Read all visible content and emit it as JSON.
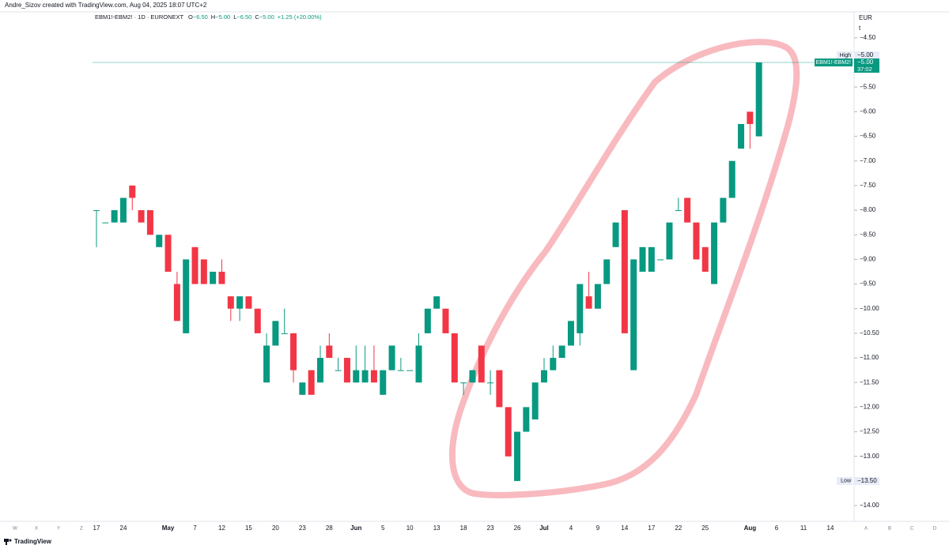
{
  "header": "Andre_Sizov created with TradingView.com, Aug 04, 2025 18:07 UTC+2",
  "brand": "TradingView",
  "chart_data": {
    "type": "candlestick",
    "legend": {
      "title": "EBM1!-EBM2! · 1D · EURONEXT",
      "items": [
        {
          "key": "O",
          "value": "−6.50"
        },
        {
          "key": "H",
          "value": "−5.00"
        },
        {
          "key": "L",
          "value": "−6.50"
        },
        {
          "key": "C",
          "value": "−5.00"
        }
      ],
      "change": "+1.25 (+20.00%)"
    },
    "currency": "EUR",
    "unit_marker": "t",
    "up_color": "#089981",
    "down_color": "#f23645",
    "grid": false,
    "ylim": [
      -14.32,
      -4.02
    ],
    "yticks": [
      {
        "value": -4.5,
        "label": "−4.50"
      },
      {
        "value": -5.5,
        "label": "−5.50"
      },
      {
        "value": -6.0,
        "label": "−6.00"
      },
      {
        "value": -6.5,
        "label": "−6.50"
      },
      {
        "value": -7.0,
        "label": "−7.00"
      },
      {
        "value": -7.5,
        "label": "−7.50"
      },
      {
        "value": -8.0,
        "label": "−8.00"
      },
      {
        "value": -8.5,
        "label": "−8.50"
      },
      {
        "value": -9.0,
        "label": "−9.00"
      },
      {
        "value": -9.5,
        "label": "−9.50"
      },
      {
        "value": -10.0,
        "label": "−10.00"
      },
      {
        "value": -10.5,
        "label": "−10.50"
      },
      {
        "value": -11.0,
        "label": "−11.00"
      },
      {
        "value": -11.5,
        "label": "−11.50"
      },
      {
        "value": -12.0,
        "label": "−12.00"
      },
      {
        "value": -12.5,
        "label": "−12.50"
      },
      {
        "value": -13.0,
        "label": "−13.00"
      },
      {
        "value": -14.0,
        "label": "−14.00"
      }
    ],
    "x_left_labels": [
      "W",
      "X",
      "Y",
      "Z"
    ],
    "x_right_labels": [
      "6",
      "11",
      "14",
      "A",
      "B",
      "C",
      "D"
    ],
    "categories": [
      "17",
      null,
      null,
      "24",
      null,
      null,
      null,
      null,
      "May",
      null,
      null,
      "7",
      null,
      null,
      "12",
      null,
      null,
      "15",
      null,
      null,
      "20",
      null,
      null,
      "23",
      null,
      null,
      "28",
      null,
      null,
      "Jun",
      null,
      null,
      "5",
      null,
      null,
      "10",
      null,
      null,
      "13",
      null,
      null,
      "18",
      null,
      null,
      "23",
      null,
      null,
      "26",
      null,
      null,
      "Jul",
      null,
      null,
      "4",
      null,
      null,
      "9",
      null,
      null,
      "14",
      null,
      null,
      "17",
      null,
      null,
      "22",
      null,
      null,
      "25",
      null,
      null,
      null,
      null,
      "Aug",
      null
    ],
    "series": [
      {
        "name": "EBM1!-EBM2!",
        "open": [
          -8,
          -8.25,
          -8.25,
          -8.25,
          -7.5,
          -8,
          -8,
          -8.75,
          -8.5,
          -9.5,
          -10.5,
          -8.75,
          -9,
          -9.5,
          -9.25,
          -9.75,
          -10,
          -9.75,
          -10,
          -11.5,
          -10.75,
          -10.5,
          -10.5,
          -11.75,
          -11.25,
          -11.5,
          -10.75,
          -11.25,
          -11,
          -11.5,
          -11.5,
          -11.25,
          -11.75,
          -11.25,
          -11.25,
          -11.25,
          -11.5,
          -10.5,
          -10,
          -10,
          -10.5,
          -11.5,
          -11.5,
          -10.75,
          -11.5,
          -11.25,
          -12,
          -13.5,
          -12.5,
          -12.25,
          -11.5,
          -11.25,
          -11,
          -10.75,
          -10.5,
          -9.75,
          -10,
          -9.5,
          -8.75,
          -8,
          -11.25,
          -9.25,
          -9.25,
          -9,
          -9,
          -8,
          -7.75,
          -8.25,
          -8.75,
          -9.5,
          -8.25,
          -7.75,
          -6.75,
          -6,
          -6.5
        ],
        "high": [
          -8,
          -8.25,
          -8,
          -7.75,
          -7.5,
          -8,
          -8,
          -8.5,
          -8.5,
          -9.25,
          -9,
          -8.75,
          -9,
          -9.25,
          -9,
          -9.75,
          -9.75,
          -9.75,
          -10,
          -10.5,
          -10.25,
          -10,
          -10.5,
          -11.5,
          -11.25,
          -10.75,
          -10.5,
          -11,
          -11,
          -10.75,
          -10.75,
          -10.75,
          -11.25,
          -10.75,
          -11,
          -11.25,
          -10.5,
          -10,
          -9.75,
          -10,
          -10.5,
          -11.5,
          -11.25,
          -10.75,
          -11.25,
          -11.25,
          -12,
          -12.5,
          -12,
          -11.5,
          -11,
          -10.75,
          -10.75,
          -10.25,
          -9.5,
          -9.25,
          -9.5,
          -9,
          -8.25,
          -8,
          -9,
          -8.75,
          -8.75,
          -9,
          -8.25,
          -7.75,
          -7.75,
          -8.25,
          -8.75,
          -8.25,
          -7.75,
          -7,
          -6.25,
          -6,
          -5
        ],
        "low": [
          -8.75,
          -8.25,
          -8.25,
          -8.25,
          -8,
          -8.25,
          -8.5,
          -8.75,
          -9.25,
          -10.25,
          -10.5,
          -9.5,
          -9.5,
          -9.5,
          -9.5,
          -10.25,
          -10.25,
          -10,
          -10.5,
          -11.5,
          -10.75,
          -10.5,
          -11.5,
          -11.75,
          -11.75,
          -11.5,
          -11,
          -11.25,
          -11.5,
          -11.5,
          -11.5,
          -11.5,
          -11.75,
          -11.25,
          -11.25,
          -11.25,
          -11.5,
          -10.5,
          -10,
          -10.5,
          -11.5,
          -11.75,
          -11.5,
          -11.5,
          -11.75,
          -12,
          -13,
          -13.5,
          -12.5,
          -12.25,
          -11.5,
          -11.25,
          -11,
          -10.75,
          -10.75,
          -10,
          -10,
          -9.5,
          -8.75,
          -10.5,
          -11.25,
          -9.25,
          -9.25,
          -9,
          -9,
          -8,
          -8.25,
          -9,
          -9.25,
          -9.5,
          -8.25,
          -7.75,
          -6.75,
          -6.75,
          -6.5
        ],
        "close": [
          -8,
          -8.25,
          -8,
          -7.75,
          -7.75,
          -8.25,
          -8.5,
          -8.5,
          -9.25,
          -10.25,
          -9,
          -9.5,
          -9.5,
          -9.25,
          -9.5,
          -10,
          -9.75,
          -10,
          -10.5,
          -10.75,
          -10.25,
          -10.5,
          -11.25,
          -11.5,
          -11.75,
          -11,
          -11,
          -11.25,
          -11.5,
          -11.25,
          -11.25,
          -11.5,
          -11.25,
          -10.75,
          -11.25,
          -11.25,
          -10.75,
          -10,
          -9.75,
          -10.5,
          -11.5,
          -11.5,
          -11.25,
          -11.5,
          -11.5,
          -12,
          -13,
          -12.5,
          -12,
          -11.5,
          -11.25,
          -11,
          -10.75,
          -10.25,
          -9.5,
          -10,
          -9.5,
          -9,
          -8.25,
          -10.5,
          -9,
          -8.75,
          -8.75,
          -9,
          -8.25,
          -8,
          -8.25,
          -9,
          -9.25,
          -8.25,
          -7.75,
          -7,
          -6.25,
          -6.25,
          -5
        ]
      }
    ],
    "high_marker": {
      "label": "High",
      "value": -5.0,
      "value_label": "−5.00"
    },
    "last_price": {
      "value": -5.0,
      "value_label": "−5.00",
      "countdown": "37:02"
    },
    "low_marker": {
      "label": "Low",
      "value": -13.5,
      "value_label": "−13.50"
    }
  }
}
